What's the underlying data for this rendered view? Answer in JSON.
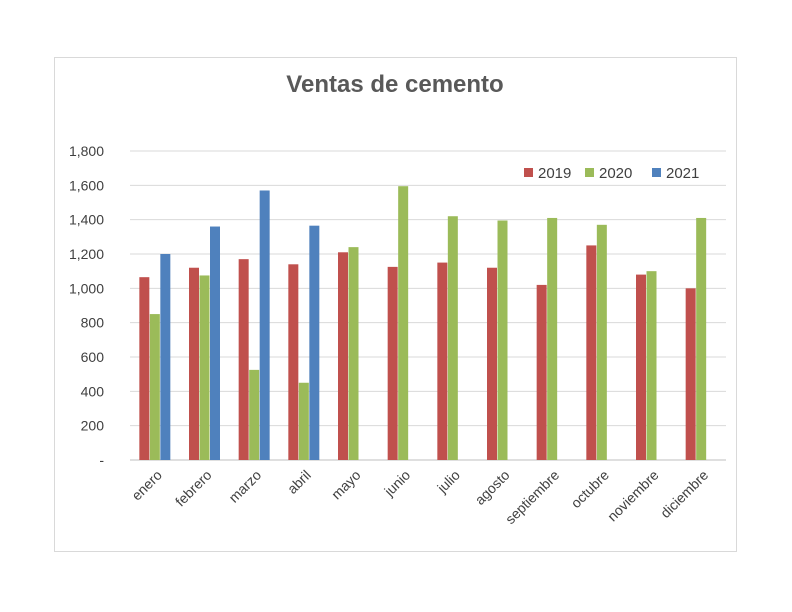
{
  "chart_data": {
    "type": "bar",
    "title": "Ventas de cemento",
    "xlabel": "",
    "ylabel": "",
    "categories": [
      "enero",
      "febrero",
      "marzo",
      "abril",
      "mayo",
      "junio",
      "julio",
      "agosto",
      "septiembre",
      "octubre",
      "noviembre",
      "diciembre"
    ],
    "series": [
      {
        "name": "2019",
        "color": "#C0504D",
        "values": [
          1065,
          1120,
          1170,
          1140,
          1210,
          1125,
          1150,
          1120,
          1020,
          1250,
          1080,
          1000
        ]
      },
      {
        "name": "2020",
        "color": "#9BBB59",
        "values": [
          850,
          1075,
          525,
          450,
          1240,
          1595,
          1420,
          1395,
          1410,
          1370,
          1100,
          1410
        ]
      },
      {
        "name": "2021",
        "color": "#4F81BD",
        "values": [
          1200,
          1360,
          1570,
          1365,
          null,
          null,
          null,
          null,
          null,
          null,
          null,
          null
        ]
      }
    ],
    "yticks": [
      "-",
      "200",
      "400",
      "600",
      "800",
      "1,000",
      "1,200",
      "1,400",
      "1,600",
      "1,800"
    ],
    "ylim": [
      0,
      1800
    ],
    "grid": true,
    "legend_position": "top-right"
  }
}
